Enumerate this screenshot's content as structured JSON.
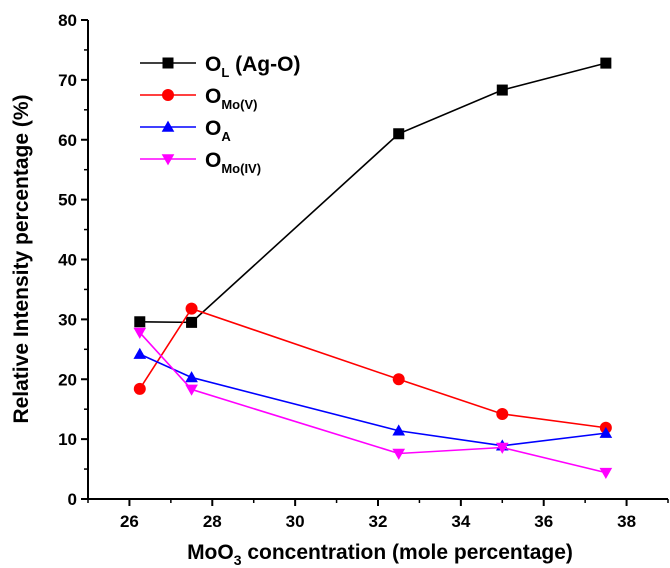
{
  "chart_data": {
    "type": "line",
    "xlabel": {
      "main": "MoO",
      "sub": "3",
      "rest": " concentration (mole percentage)"
    },
    "ylabel": "Relative Intensity percentage (%)",
    "xlim": [
      25,
      39
    ],
    "ylim": [
      0,
      80
    ],
    "xticks": [
      26,
      28,
      30,
      32,
      34,
      36,
      38
    ],
    "yticks": [
      0,
      10,
      20,
      30,
      40,
      50,
      60,
      70,
      80
    ],
    "grid": false,
    "legend_position": "top-left",
    "series": [
      {
        "name": "O",
        "name_sub": "L",
        "name_rest": " (Ag-O)",
        "color": "#000000",
        "marker": "square",
        "x": [
          26.25,
          27.5,
          32.5,
          35,
          37.5
        ],
        "y": [
          29.6,
          29.5,
          61,
          68.3,
          72.8
        ]
      },
      {
        "name": "O",
        "name_sub": "Mo(V)",
        "name_rest": "",
        "color": "#ff0000",
        "marker": "circle",
        "x": [
          26.25,
          27.5,
          32.5,
          35,
          37.5
        ],
        "y": [
          18.4,
          31.8,
          20,
          14.2,
          11.9
        ]
      },
      {
        "name": "O",
        "name_sub": "A",
        "name_rest": "",
        "color": "#0000ff",
        "marker": "triangle-up",
        "x": [
          26.25,
          27.5,
          32.5,
          35,
          37.5
        ],
        "y": [
          24.2,
          20.3,
          11.4,
          8.9,
          11
        ]
      },
      {
        "name": "O",
        "name_sub": "Mo(IV)",
        "name_rest": "",
        "color": "#ff00ff",
        "marker": "triangle-down",
        "x": [
          26.25,
          27.5,
          32.5,
          35,
          37.5
        ],
        "y": [
          27.8,
          18.3,
          7.6,
          8.6,
          4.4
        ]
      }
    ]
  }
}
